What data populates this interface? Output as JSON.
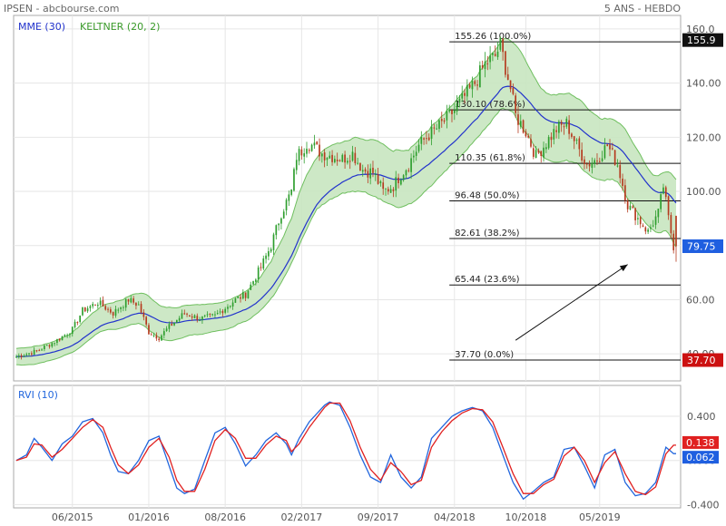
{
  "header": {
    "title": "IPSEN - abcbourse.com",
    "period": "5 ANS - HEBDO"
  },
  "colors": {
    "keltner_fill": "#c8e6c0",
    "keltner_line": "#6fbf5f",
    "ema": "#2233cc",
    "up_candle": "#2e9e2e",
    "down_candle": "#b53a1e",
    "rvi": "#2266dd",
    "rvi_signal": "#e02020",
    "tag_price": "#1f5fe0",
    "tag_red": "#cc1111",
    "tag_black": "#111111",
    "arrow": "#111111"
  },
  "chart_data": [
    {
      "type": "candlestick",
      "panel": "price",
      "legend": [
        "MME (30)",
        "KELTNER (20, 2)"
      ],
      "ylim": [
        30,
        165
      ],
      "y_ticks": [
        "160.0",
        "140.00",
        "120.00",
        "100.00",
        "60.00",
        "40.00"
      ],
      "x_ticks": [
        "06/2015",
        "01/2016",
        "08/2016",
        "02/2017",
        "09/2017",
        "04/2018",
        "10/2018",
        "05/2019"
      ],
      "x_tick_weeks": [
        22,
        52,
        82,
        112,
        142,
        172,
        200,
        229
      ],
      "weeks_total": 260,
      "price_anchors_weeks": [
        0,
        8,
        16,
        22,
        26,
        32,
        38,
        44,
        48,
        52,
        56,
        60,
        66,
        72,
        78,
        82,
        86,
        90,
        96,
        100,
        104,
        108,
        110,
        112,
        114,
        116,
        120,
        124,
        128,
        132,
        136,
        140,
        144,
        148,
        150,
        154,
        158,
        162,
        166,
        172,
        176,
        180,
        184,
        188,
        190,
        194,
        196,
        200,
        204,
        208,
        212,
        216,
        220,
        224,
        228,
        232,
        236,
        240,
        244,
        248,
        252,
        254,
        256,
        258
      ],
      "price_anchors_close": [
        39,
        41,
        45,
        49,
        56,
        59,
        55,
        60,
        58,
        48,
        46,
        50,
        55,
        53,
        54,
        57,
        60,
        62,
        72,
        80,
        92,
        100,
        113,
        115,
        118,
        117,
        114,
        113,
        112,
        114,
        108,
        107,
        100,
        102,
        105,
        110,
        117,
        121,
        124,
        130,
        135,
        140,
        147,
        150,
        154,
        138,
        128,
        122,
        113,
        118,
        123,
        125,
        117,
        110,
        112,
        117,
        110,
        95,
        90,
        85,
        92,
        102,
        90,
        79.75
      ],
      "ema_period": 30,
      "keltner_period": 20,
      "keltner_mult": 2,
      "fibonacci": [
        {
          "label": "155.26 (100.0%)",
          "value": 155.26
        },
        {
          "label": "130.10 (78.6%)",
          "value": 130.1
        },
        {
          "label": "110.35 (61.8%)",
          "value": 110.35
        },
        {
          "label": "96.48 (50.0%)",
          "value": 96.48
        },
        {
          "label": "82.61 (38.2%)",
          "value": 82.61
        },
        {
          "label": "65.44 (23.6%)",
          "value": 65.44
        },
        {
          "label": "37.70 (0.0%)",
          "value": 37.7
        }
      ],
      "fib_start_week": 170,
      "price_tags": [
        {
          "label": "155.9",
          "value": 155.9,
          "color": "#111111"
        },
        {
          "label": "79.75",
          "value": 79.75,
          "color": "#1f5fe0"
        },
        {
          "label": "37.70",
          "value": 37.7,
          "color": "#cc1111"
        }
      ],
      "arrow": {
        "from_week": 196,
        "from_value": 45,
        "to_week": 240,
        "to_value": 73
      }
    },
    {
      "type": "line",
      "panel": "oscillator",
      "legend": [
        "RVI (10)"
      ],
      "ylim": [
        -0.43,
        0.68
      ],
      "y_ticks": [
        "0.400",
        "0.000",
        "-0.400"
      ],
      "y_tick_values": [
        0.4,
        0.0,
        -0.4
      ],
      "series": [
        {
          "role": "rvi",
          "x_weeks": [
            0,
            4,
            7,
            10,
            14,
            18,
            22,
            26,
            30,
            34,
            37,
            40,
            44,
            48,
            52,
            56,
            60,
            63,
            66,
            70,
            74,
            78,
            82,
            86,
            90,
            94,
            98,
            102,
            106,
            108,
            111,
            115,
            119,
            121,
            123,
            127,
            131,
            135,
            139,
            143,
            147,
            151,
            155,
            159,
            163,
            167,
            171,
            175,
            179,
            183,
            187,
            191,
            195,
            199,
            203,
            207,
            211,
            215,
            219,
            223,
            227,
            231,
            235,
            239,
            243,
            247,
            251,
            255,
            258
          ],
          "values": [
            0.0,
            0.05,
            0.2,
            0.12,
            0.0,
            0.15,
            0.22,
            0.35,
            0.38,
            0.25,
            0.05,
            -0.1,
            -0.12,
            0.0,
            0.18,
            0.22,
            -0.05,
            -0.25,
            -0.3,
            -0.26,
            0.0,
            0.25,
            0.3,
            0.15,
            -0.05,
            0.05,
            0.18,
            0.25,
            0.15,
            0.05,
            0.2,
            0.35,
            0.45,
            0.5,
            0.53,
            0.5,
            0.3,
            0.05,
            -0.15,
            -0.2,
            0.05,
            -0.15,
            -0.25,
            -0.15,
            0.2,
            0.3,
            0.4,
            0.45,
            0.48,
            0.45,
            0.3,
            0.05,
            -0.2,
            -0.35,
            -0.28,
            -0.2,
            -0.15,
            0.1,
            0.12,
            -0.05,
            -0.25,
            0.05,
            0.1,
            -0.2,
            -0.32,
            -0.3,
            -0.2,
            0.12,
            0.062
          ]
        },
        {
          "role": "signal",
          "x_weeks": [
            0,
            4,
            7,
            10,
            14,
            18,
            22,
            26,
            30,
            34,
            37,
            40,
            44,
            48,
            52,
            56,
            60,
            63,
            66,
            70,
            74,
            78,
            82,
            86,
            90,
            94,
            98,
            102,
            106,
            108,
            111,
            115,
            119,
            121,
            123,
            127,
            131,
            135,
            139,
            143,
            147,
            151,
            155,
            159,
            163,
            167,
            171,
            175,
            179,
            183,
            187,
            191,
            195,
            199,
            203,
            207,
            211,
            215,
            219,
            223,
            227,
            231,
            235,
            239,
            243,
            247,
            251,
            255,
            258
          ],
          "values": [
            0.0,
            0.03,
            0.15,
            0.14,
            0.03,
            0.1,
            0.2,
            0.3,
            0.37,
            0.3,
            0.12,
            -0.04,
            -0.12,
            -0.04,
            0.12,
            0.2,
            0.03,
            -0.18,
            -0.28,
            -0.28,
            -0.08,
            0.18,
            0.28,
            0.2,
            0.02,
            0.02,
            0.14,
            0.22,
            0.18,
            0.08,
            0.15,
            0.3,
            0.42,
            0.48,
            0.52,
            0.52,
            0.36,
            0.12,
            -0.08,
            -0.18,
            -0.02,
            -0.1,
            -0.22,
            -0.18,
            0.12,
            0.26,
            0.36,
            0.43,
            0.47,
            0.46,
            0.35,
            0.12,
            -0.12,
            -0.3,
            -0.3,
            -0.22,
            -0.17,
            0.04,
            0.12,
            0.0,
            -0.2,
            -0.02,
            0.08,
            -0.12,
            -0.28,
            -0.31,
            -0.24,
            0.06,
            0.138
          ]
        }
      ],
      "value_tags": [
        {
          "label": "0.138",
          "value": 0.138,
          "color": "#e02020"
        },
        {
          "label": "0.062",
          "value": 0.062,
          "color": "#1f5fe0"
        }
      ]
    }
  ]
}
